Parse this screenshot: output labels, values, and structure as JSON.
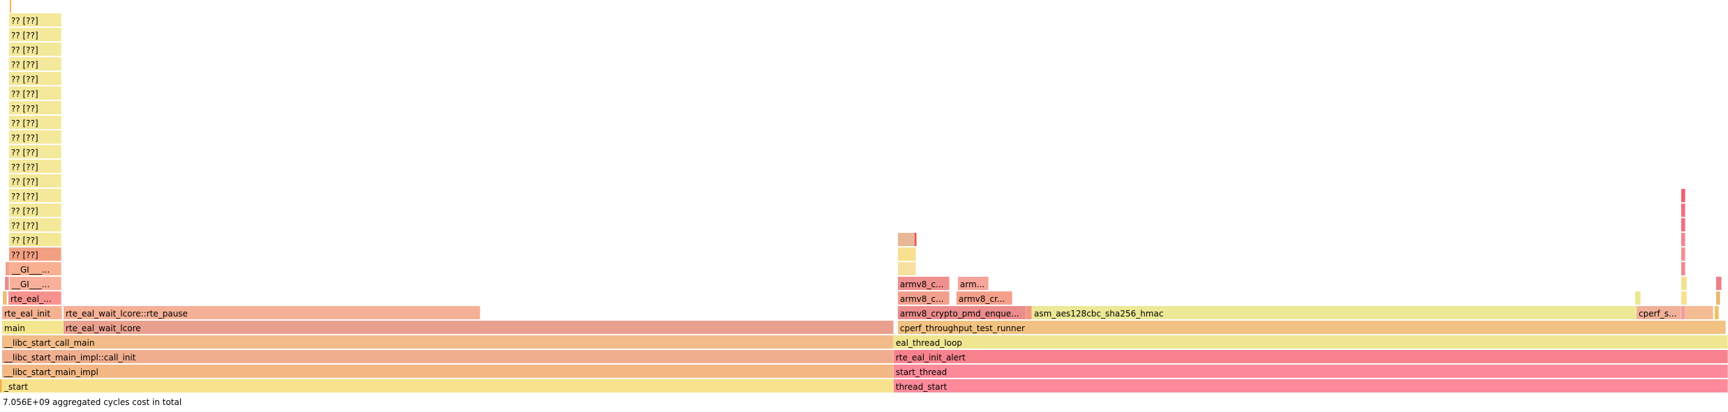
{
  "chart_data": {
    "type": "flamegraph",
    "total_label": "7.056E+09 aggregated cycles cost in total",
    "total_width": 2475,
    "frames": [
      {
        "label": "_start",
        "start": 3,
        "width": 1277,
        "depth": 0,
        "color": "#f8e28e"
      },
      {
        "label": "thread_start",
        "start": 1280,
        "width": 1195,
        "depth": 0,
        "color": "#fc8a9a"
      },
      {
        "label": "",
        "start": 0,
        "width": 3,
        "depth": 0,
        "color": "#f0b040"
      },
      {
        "label": "__libc_start_main_impl",
        "start": 3,
        "width": 1277,
        "depth": 1,
        "color": "#f3b884"
      },
      {
        "label": "start_thread",
        "start": 1280,
        "width": 1195,
        "depth": 1,
        "color": "#fc8a9a"
      },
      {
        "label": "__libc_start_main_impl::call_init",
        "start": 3,
        "width": 1277,
        "depth": 2,
        "color": "#f0ae8e"
      },
      {
        "label": "rte_eal_init_alert",
        "start": 1280,
        "width": 1195,
        "depth": 2,
        "color": "#f7828e"
      },
      {
        "label": "__libc_start_call_main",
        "start": 3,
        "width": 1277,
        "depth": 3,
        "color": "#f4bc88"
      },
      {
        "label": "eal_thread_loop",
        "start": 1280,
        "width": 1195,
        "depth": 3,
        "color": "#f0e692"
      },
      {
        "label": "main",
        "start": 3,
        "width": 88,
        "depth": 4,
        "color": "#f3e68e"
      },
      {
        "label": "rte_eal_wait_lcore",
        "start": 91,
        "width": 1189,
        "depth": 4,
        "color": "#eaa08e"
      },
      {
        "label": "cperf_throughput_test_runner",
        "start": 1286,
        "width": 1186,
        "depth": 4,
        "color": "#f1c282"
      },
      {
        "label": "rte_eal_init",
        "start": 3,
        "width": 86,
        "depth": 5,
        "color": "#f5b292"
      },
      {
        "label": "rte_eal_wait_lcore::rte_pause",
        "start": 91,
        "width": 597,
        "depth": 5,
        "color": "#f6b096"
      },
      {
        "label": "armv8_crypto_pmd_enque...",
        "start": 1286,
        "width": 184,
        "depth": 5,
        "color": "#ec8c8c"
      },
      {
        "label": "",
        "start": 1470,
        "width": 8,
        "depth": 5,
        "color": "#f2987e"
      },
      {
        "label": "asm_aes128cbc_sha256_hmac",
        "start": 1478,
        "width": 866,
        "depth": 5,
        "color": "#ece896"
      },
      {
        "label": "cperf_s...",
        "start": 2344,
        "width": 64,
        "depth": 5,
        "color": "#f1b098"
      },
      {
        "label": "",
        "start": 2408,
        "width": 6,
        "depth": 5,
        "color": "#f49aa0"
      },
      {
        "label": "",
        "start": 2414,
        "width": 40,
        "depth": 5,
        "color": "#f4bc92"
      },
      {
        "label": "",
        "start": 2456,
        "width": 6,
        "depth": 5,
        "color": "#f1c060"
      },
      {
        "label": "rte_eal_...",
        "start": 12,
        "width": 76,
        "depth": 6,
        "color": "#f8928e"
      },
      {
        "label": "",
        "start": 4,
        "width": 6,
        "depth": 6,
        "color": "#e8c07a"
      },
      {
        "label": "armv8_c...",
        "start": 1286,
        "width": 74,
        "depth": 6,
        "color": "#f2a08e"
      },
      {
        "label": "armv8_cr...",
        "start": 1370,
        "width": 80,
        "depth": 6,
        "color": "#f4a08a"
      },
      {
        "label": "",
        "start": 2342,
        "width": 8,
        "depth": 6,
        "color": "#e8e890"
      },
      {
        "label": "",
        "start": 2408,
        "width": 8,
        "depth": 6,
        "color": "#f8e08c"
      },
      {
        "label": "",
        "start": 2458,
        "width": 6,
        "depth": 6,
        "color": "#e8b878"
      },
      {
        "label": "__GI___...",
        "start": 14,
        "width": 74,
        "depth": 7,
        "color": "#f8b09a"
      },
      {
        "label": "",
        "start": 7,
        "width": 6,
        "depth": 7,
        "color": "#f08a8a"
      },
      {
        "label": "armv8_c...",
        "start": 1286,
        "width": 74,
        "depth": 7,
        "color": "#f0908e"
      },
      {
        "label": "arm...",
        "start": 1372,
        "width": 44,
        "depth": 7,
        "color": "#f7a49a"
      },
      {
        "label": "",
        "start": 2408,
        "width": 8,
        "depth": 7,
        "color": "#f0e290"
      },
      {
        "label": "",
        "start": 2458,
        "width": 8,
        "depth": 7,
        "color": "#ee8088"
      },
      {
        "label": "__GI___...",
        "start": 14,
        "width": 74,
        "depth": 8,
        "color": "#f8b090"
      },
      {
        "label": "",
        "start": 8,
        "width": 6,
        "depth": 8,
        "color": "#f0a08a"
      },
      {
        "label": "",
        "start": 1286,
        "width": 26,
        "depth": 8,
        "color": "#f8e0a0"
      },
      {
        "label": "",
        "start": 2408,
        "width": 6,
        "depth": 8,
        "color": "#f08890"
      },
      {
        "label": "?? [??]",
        "start": 13,
        "width": 75,
        "depth": 9,
        "color": "#f3a082"
      },
      {
        "label": "",
        "start": 1286,
        "width": 26,
        "depth": 9,
        "color": "#f8e090"
      },
      {
        "label": "",
        "start": 2408,
        "width": 6,
        "depth": 9,
        "color": "#f09090"
      },
      {
        "label": "?? [??]",
        "start": 13,
        "width": 75,
        "depth": 10,
        "color": "#f4e896"
      },
      {
        "label": "",
        "start": 1286,
        "width": 26,
        "depth": 10,
        "color": "#e8b896"
      },
      {
        "label": "",
        "start": 1310,
        "width": 3,
        "depth": 10,
        "color": "#f05050"
      },
      {
        "label": "",
        "start": 2408,
        "width": 6,
        "depth": 10,
        "color": "#f08890"
      },
      {
        "label": "?? [??]",
        "start": 13,
        "width": 75,
        "depth": 11,
        "color": "#f4e89a"
      },
      {
        "label": "",
        "start": 2408,
        "width": 6,
        "depth": 11,
        "color": "#f07080"
      },
      {
        "label": "?? [??]",
        "start": 13,
        "width": 75,
        "depth": 12,
        "color": "#f4e89a"
      },
      {
        "label": "",
        "start": 2408,
        "width": 6,
        "depth": 12,
        "color": "#f07080"
      },
      {
        "label": "?? [??]",
        "start": 13,
        "width": 75,
        "depth": 13,
        "color": "#f4e89a"
      },
      {
        "label": "",
        "start": 2408,
        "width": 6,
        "depth": 13,
        "color": "#f06070"
      },
      {
        "label": "?? [??]",
        "start": 13,
        "width": 75,
        "depth": 14,
        "color": "#f4e89a"
      },
      {
        "label": "?? [??]",
        "start": 13,
        "width": 75,
        "depth": 15,
        "color": "#f4e89a"
      },
      {
        "label": "?? [??]",
        "start": 13,
        "width": 75,
        "depth": 16,
        "color": "#f4e89a"
      },
      {
        "label": "?? [??]",
        "start": 13,
        "width": 75,
        "depth": 17,
        "color": "#f4e89a"
      },
      {
        "label": "?? [??]",
        "start": 13,
        "width": 75,
        "depth": 18,
        "color": "#f4e89a"
      },
      {
        "label": "?? [??]",
        "start": 13,
        "width": 75,
        "depth": 19,
        "color": "#f4e89a"
      },
      {
        "label": "?? [??]",
        "start": 13,
        "width": 75,
        "depth": 20,
        "color": "#f4e89a"
      },
      {
        "label": "?? [??]",
        "start": 13,
        "width": 75,
        "depth": 21,
        "color": "#f4e89a"
      },
      {
        "label": "?? [??]",
        "start": 13,
        "width": 75,
        "depth": 22,
        "color": "#f4e89a"
      },
      {
        "label": "?? [??]",
        "start": 13,
        "width": 75,
        "depth": 23,
        "color": "#f4e89a"
      },
      {
        "label": "?? [??]",
        "start": 13,
        "width": 75,
        "depth": 24,
        "color": "#f4e89a"
      },
      {
        "label": "?? [??]",
        "start": 13,
        "width": 75,
        "depth": 25,
        "color": "#f4e89a"
      }
    ]
  }
}
